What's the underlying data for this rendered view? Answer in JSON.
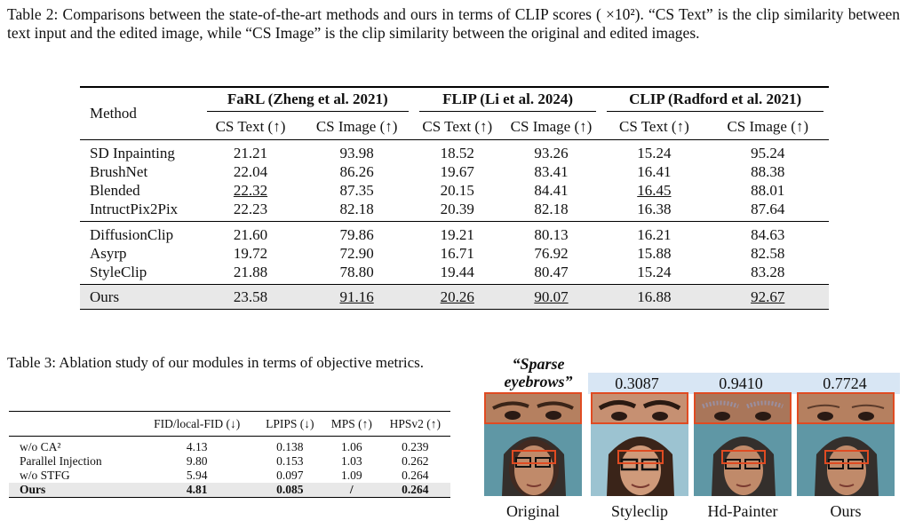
{
  "table2": {
    "caption": "Table 2: Comparisons between the state-of-the-art methods and ours in terms of CLIP scores ( ×10²). “CS Text” is the clip similarity between text input and the edited image, while “CS Image” is the clip similarity between the original and edited images.",
    "method_header": "Method",
    "groups": [
      "FaRL (Zheng et al. 2021)",
      "FLIP (Li et al. 2024)",
      "CLIP (Radford et al. 2021)"
    ],
    "subheaders": [
      "CS Text (↑)",
      "CS Image (↑)",
      "CS Text (↑)",
      "CS Image (↑)",
      "CS Text (↑)",
      "CS Image (↑)"
    ],
    "rows": [
      {
        "method": "SD Inpainting",
        "values": [
          "21.21",
          "93.98",
          "18.52",
          "93.26",
          "15.24",
          "95.24"
        ]
      },
      {
        "method": "BrushNet",
        "values": [
          "22.04",
          "86.26",
          "19.67",
          "83.41",
          "16.41",
          "88.38"
        ]
      },
      {
        "method": "Blended",
        "values": [
          "22.32",
          "87.35",
          "20.15",
          "84.41",
          "16.45",
          "88.01"
        ]
      },
      {
        "method": "IntructPix2Pix",
        "values": [
          "22.23",
          "82.18",
          "20.39",
          "82.18",
          "16.38",
          "87.64"
        ]
      },
      {
        "method": "DiffusionClip",
        "values": [
          "21.60",
          "79.86",
          "19.21",
          "80.13",
          "16.21",
          "84.63"
        ]
      },
      {
        "method": "Asyrp",
        "values": [
          "19.72",
          "72.90",
          "16.71",
          "76.92",
          "15.88",
          "82.58"
        ]
      },
      {
        "method": "StyleClip",
        "values": [
          "21.88",
          "78.80",
          "19.44",
          "80.47",
          "15.24",
          "83.28"
        ]
      },
      {
        "method": "Ours",
        "values": [
          "23.58",
          "91.16",
          "20.26",
          "90.07",
          "16.88",
          "92.67"
        ]
      }
    ]
  },
  "table3": {
    "caption": "Table 3: Ablation study of our modules in terms of objective metrics.",
    "headers": [
      "",
      "FID/local-FID (↓)",
      "LPIPS (↓)",
      "MPS (↑)",
      "HPSv2 (↑)"
    ],
    "rows": [
      {
        "method": "w/o CA²",
        "values": [
          "4.13",
          "0.138",
          "1.06",
          "0.239"
        ]
      },
      {
        "method": "Parallel Injection",
        "values": [
          "9.80",
          "0.153",
          "1.03",
          "0.262"
        ]
      },
      {
        "method": "w/o STFG",
        "values": [
          "5.94",
          "0.097",
          "1.09",
          "0.264"
        ]
      },
      {
        "method": "Ours",
        "values": [
          "4.81",
          "0.085",
          "/",
          "0.264"
        ]
      }
    ]
  },
  "figure": {
    "prompt": "“Sparse eyebrows”",
    "scores": [
      "0.3087",
      "0.9410",
      "0.7724"
    ],
    "labels": [
      "Original",
      "Styleclip",
      "Hd-Painter",
      "Ours"
    ],
    "box_color": "#e04b22",
    "score_bar_color": "#d8e6f4"
  }
}
